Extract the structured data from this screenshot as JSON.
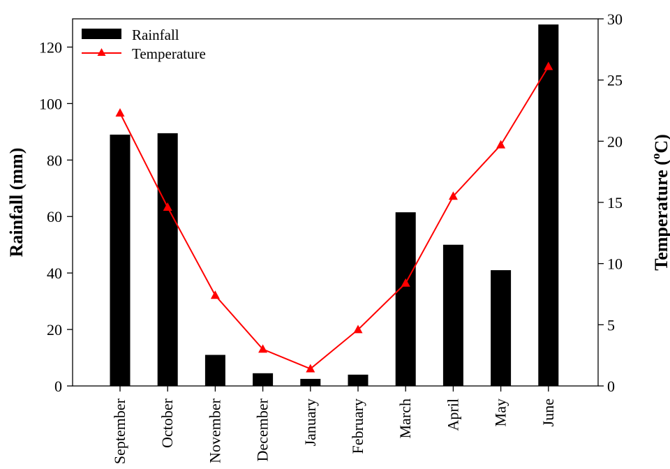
{
  "chart_data": {
    "type": "bar",
    "categories": [
      "September",
      "October",
      "November",
      "December",
      "January",
      "February",
      "March",
      "April",
      "May",
      "June"
    ],
    "series": [
      {
        "name": "Rainfall",
        "kind": "bar",
        "axis": "left",
        "color": "#000000",
        "values": [
          89,
          89.5,
          11,
          4.5,
          2.5,
          4,
          61.5,
          50,
          41,
          128
        ]
      },
      {
        "name": "Temperature",
        "kind": "line",
        "axis": "right",
        "color": "#ff0000",
        "marker": "triangle",
        "values": [
          22.3,
          14.6,
          7.4,
          3,
          1.4,
          4.6,
          8.4,
          15.5,
          19.7,
          26.1
        ]
      }
    ],
    "ylabel": "Rainfall (mm)",
    "y2label_main": "Temperature (",
    "y2label_sup": "o",
    "y2label_end": "C)",
    "ylim": [
      0,
      130
    ],
    "y2lim": [
      0,
      30
    ],
    "yticks": [
      "0",
      "20",
      "40",
      "60",
      "80",
      "100",
      "120"
    ],
    "y2ticks": [
      "0",
      "5",
      "10",
      "15",
      "20",
      "25",
      "30"
    ],
    "legend_position": "top-left",
    "grid": false
  }
}
